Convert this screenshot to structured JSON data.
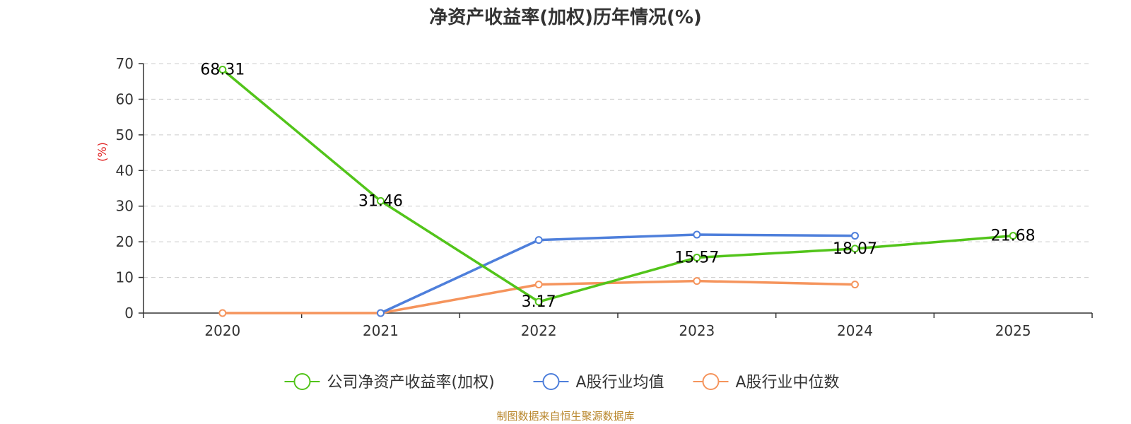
{
  "chart_data": {
    "type": "line",
    "title": "净资产收益率(加权)历年情况(%)",
    "ylabel": "(%)",
    "xlabel": "",
    "categories": [
      "2020",
      "2021",
      "2022",
      "2023",
      "2024",
      "2025"
    ],
    "ylim": [
      0,
      70
    ],
    "yticks": [
      0,
      10,
      20,
      30,
      40,
      50,
      60,
      70
    ],
    "grid": true,
    "legend_position": "bottom-center",
    "series": [
      {
        "name": "公司净资产收益率(加权)",
        "color": "#52c41a",
        "values": [
          68.31,
          31.46,
          3.17,
          15.57,
          18.07,
          21.68
        ],
        "labels": [
          "68.31",
          "31.46",
          "3.17",
          "15.57",
          "18.07",
          "21.68"
        ]
      },
      {
        "name": "A股行业均值",
        "color": "#4e7fdb",
        "values": [
          null,
          0,
          20.5,
          22.0,
          21.7,
          null
        ]
      },
      {
        "name": "A股行业中位数",
        "color": "#f5945c",
        "values": [
          0,
          0,
          8.0,
          9.0,
          8.0,
          null
        ]
      }
    ]
  },
  "source": "制图数据来自恒生聚源数据库"
}
